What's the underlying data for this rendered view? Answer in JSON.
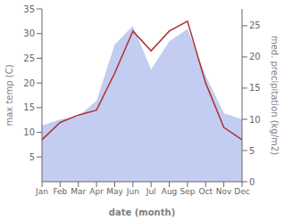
{
  "chart_data": {
    "type": "line",
    "categories": [
      "Jan",
      "Feb",
      "Mar",
      "Apr",
      "May",
      "Jun",
      "Jul",
      "Aug",
      "Sep",
      "Oct",
      "Nov",
      "Dec"
    ],
    "series": [
      {
        "type": "area",
        "axis": "y2",
        "color": "#b8c4ee",
        "values": [
          9.0,
          10.0,
          10.5,
          13.0,
          22.0,
          25.0,
          18.0,
          22.5,
          24.5,
          17.0,
          11.0,
          10.0
        ]
      },
      {
        "type": "line",
        "color": "#b03030",
        "values": [
          8.5,
          12.0,
          13.5,
          14.5,
          22.0,
          30.5,
          26.5,
          30.5,
          32.5,
          20.0,
          11.0,
          8.5
        ]
      }
    ],
    "xlabel": "date (month)",
    "ylabel": "max temp (C)",
    "y2label": "med. precipitation (kg/m2)",
    "ylim": [
      0,
      35
    ],
    "yticks": [
      5,
      10,
      15,
      20,
      25,
      30,
      35
    ],
    "y2lim": [
      0,
      27.7
    ],
    "y2ticks": [
      0,
      5,
      10,
      15,
      20,
      25
    ],
    "grid": false
  }
}
